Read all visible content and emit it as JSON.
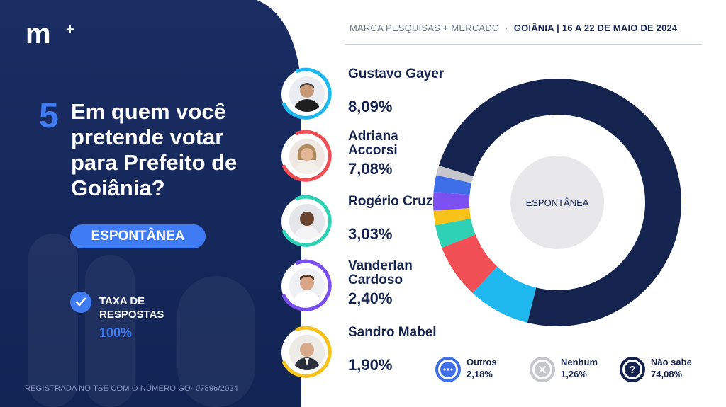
{
  "brand": {
    "logo": "m",
    "logo_plus": "+"
  },
  "header": {
    "source": "MARCA PESQUISAS + MERCADO",
    "separator": "·",
    "city_dates": "GOIÂNIA | 16 A 22 DE MAIO DE 2024"
  },
  "question": {
    "number": "5",
    "text": "Em quem você pretende votar para Prefeito de Goiânia?",
    "badge": "ESPONTÂNEA"
  },
  "response_rate": {
    "label": "TAXA DE RESPOSTAS",
    "value": "100%"
  },
  "footer": {
    "registration": "REGISTRADA NO TSE COM O NÚMERO GO- 07896/2024"
  },
  "candidates": [
    {
      "name": "Gustavo Gayer",
      "pct": "8,09%",
      "color": "#1eb8ef"
    },
    {
      "name": "Adriana Accorsi",
      "pct": "7,08%",
      "color": "#ef4f55"
    },
    {
      "name": "Rogério Cruz",
      "pct": "3,03%",
      "color": "#2ed1b4"
    },
    {
      "name": "Vanderlan Cardoso",
      "pct": "2,40%",
      "color": "#7b4ff0"
    },
    {
      "name": "Sandro Mabel",
      "pct": "1,90%",
      "color": "#f7c21a"
    }
  ],
  "legend": [
    {
      "label": "Outros",
      "value": "2,18%",
      "icon": "ellipsis-icon",
      "color": "#3f6fe8"
    },
    {
      "label": "Nenhum",
      "value": "1,26%",
      "icon": "x-icon",
      "color": "#c5c7cc"
    },
    {
      "label": "Não sabe",
      "value": "74,08%",
      "icon": "question-icon",
      "color": "#15244e"
    }
  ],
  "chart_data": {
    "type": "pie",
    "variant": "donut",
    "center_label": "ESPONTÂNEA",
    "start_angle_deg": -72.7,
    "slices": [
      {
        "name": "Não sabe",
        "value": 74.08,
        "color": "#15244e"
      },
      {
        "name": "Gustavo Gayer",
        "value": 8.09,
        "color": "#1eb8ef"
      },
      {
        "name": "Adriana Accorsi",
        "value": 7.08,
        "color": "#ef4f55"
      },
      {
        "name": "Rogério Cruz",
        "value": 3.03,
        "color": "#2ed1b4"
      },
      {
        "name": "Sandro Mabel",
        "value": 1.9,
        "color": "#f7c21a"
      },
      {
        "name": "Vanderlan Cardoso",
        "value": 2.4,
        "color": "#7b4ff0"
      },
      {
        "name": "Outros",
        "value": 2.18,
        "color": "#3f6fe8"
      },
      {
        "name": "Nenhum",
        "value": 1.26,
        "color": "#c5c7cc"
      }
    ]
  }
}
